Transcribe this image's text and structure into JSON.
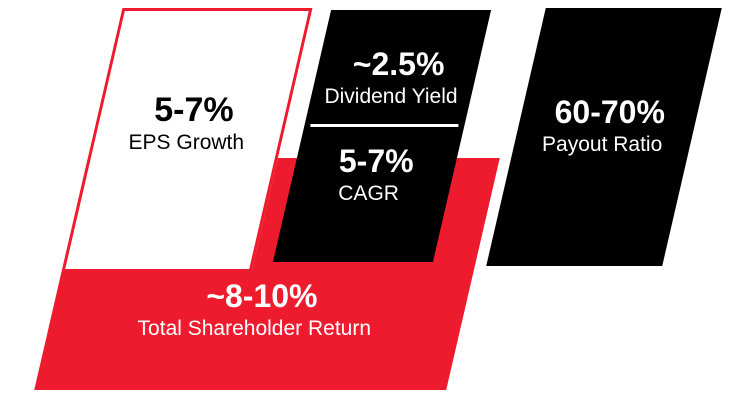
{
  "panels": {
    "eps": {
      "value": "5-7%",
      "label": "EPS Growth"
    },
    "dividend": {
      "top_value": "~2.5%",
      "top_label": "Dividend Yield",
      "bottom_value": "5-7%",
      "bottom_label": "CAGR"
    },
    "payout": {
      "value": "60-70%",
      "label": "Payout Ratio"
    },
    "tsr": {
      "value": "~8-10%",
      "label": "Total Shareholder Return"
    }
  },
  "colors": {
    "accent_red": "#ED1B2D",
    "panel_black": "#000000",
    "panel_white": "#FFFFFF"
  }
}
